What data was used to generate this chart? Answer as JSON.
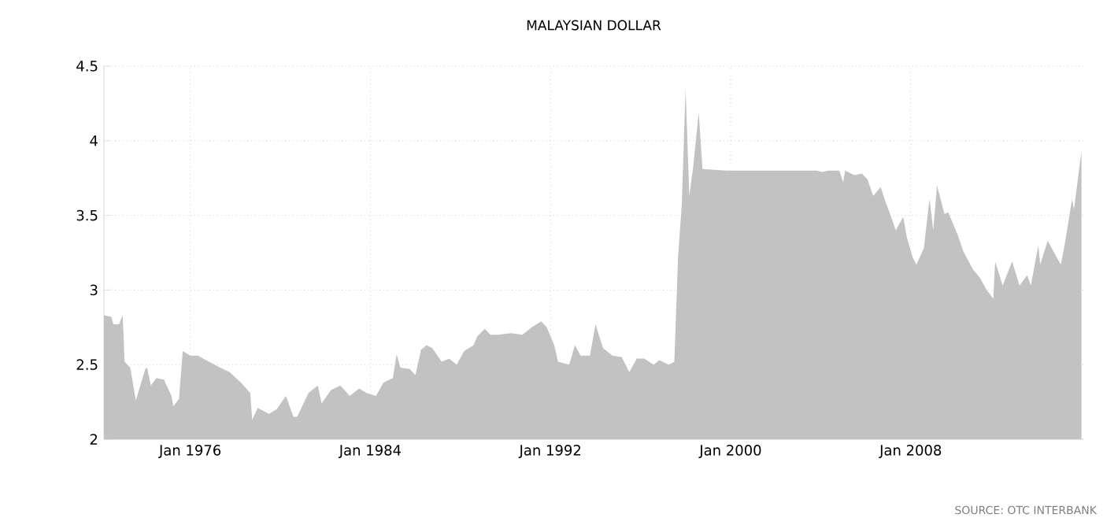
{
  "chart_data": {
    "type": "area",
    "title": "MALAYSIAN DOLLAR",
    "annotations": [
      "SOURCE: OTC INTERBANK"
    ],
    "xlim": [
      "1972-03",
      "2015-09"
    ],
    "ylim": [
      2,
      4.5
    ],
    "xticks": [
      {
        "value": "1976-01",
        "label": "Jan 1976"
      },
      {
        "value": "1984-01",
        "label": "Jan 1984"
      },
      {
        "value": "1992-01",
        "label": "Jan 1992"
      },
      {
        "value": "2000-01",
        "label": "Jan 2000"
      },
      {
        "value": "2008-01",
        "label": "Jan 2008"
      }
    ],
    "yticks": [
      2,
      2.5,
      3,
      3.5,
      4,
      4.5
    ],
    "grid": true,
    "series": [
      {
        "color": "#c2c2c2",
        "x": [
          "1972-03",
          "1972-07",
          "1972-08",
          "1972-11",
          "1973-01",
          "1973-02",
          "1973-05",
          "1973-08",
          "1974-01",
          "1974-02",
          "1974-04",
          "1974-07",
          "1974-11",
          "1975-03",
          "1975-04",
          "1975-07",
          "1975-09",
          "1976-01",
          "1976-05",
          "1976-11",
          "1977-05",
          "1977-10",
          "1978-04",
          "1978-09",
          "1978-10",
          "1979-01",
          "1979-07",
          "1979-11",
          "1980-04",
          "1980-08",
          "1980-10",
          "1981-04",
          "1981-09",
          "1981-11",
          "1982-04",
          "1982-09",
          "1983-02",
          "1983-07",
          "1983-11",
          "1984-04",
          "1984-08",
          "1985-01",
          "1985-03",
          "1985-05",
          "1985-10",
          "1986-01",
          "1986-04",
          "1986-07",
          "1986-10",
          "1987-03",
          "1987-07",
          "1987-11",
          "1988-03",
          "1988-08",
          "1988-10",
          "1989-02",
          "1989-05",
          "1989-09",
          "1990-04",
          "1990-10",
          "1991-03",
          "1991-08",
          "1991-11",
          "1992-03",
          "1992-05",
          "1992-11",
          "1993-02",
          "1993-05",
          "1993-10",
          "1994-01",
          "1994-05",
          "1994-10",
          "1995-03",
          "1995-07",
          "1995-11",
          "1996-03",
          "1996-08",
          "1996-11",
          "1997-04",
          "1997-07",
          "1997-09",
          "1997-11",
          "1998-01",
          "1998-03",
          "1998-05",
          "1998-08",
          "1998-10",
          "1999-11",
          "2003-11",
          "2004-02",
          "2004-05",
          "2004-11",
          "2005-01",
          "2005-02",
          "2005-07",
          "2005-11",
          "2006-02",
          "2006-05",
          "2006-09",
          "2006-11",
          "2007-02",
          "2007-05",
          "2007-09",
          "2007-11",
          "2008-02",
          "2008-04",
          "2008-08",
          "2008-11",
          "2009-01",
          "2009-03",
          "2009-07",
          "2009-09",
          "2010-02",
          "2010-05",
          "2010-10",
          "2011-02",
          "2011-05",
          "2011-09",
          "2011-10",
          "2012-02",
          "2012-07",
          "2012-11",
          "2013-03",
          "2013-05",
          "2013-09",
          "2013-10",
          "2014-02",
          "2014-05",
          "2014-09",
          "2014-11",
          "2015-03",
          "2015-04",
          "2015-08"
        ],
        "values": [
          2.83,
          2.82,
          2.77,
          2.77,
          2.83,
          2.52,
          2.48,
          2.26,
          2.47,
          2.48,
          2.36,
          2.41,
          2.4,
          2.29,
          2.22,
          2.27,
          2.59,
          2.56,
          2.56,
          2.52,
          2.48,
          2.45,
          2.38,
          2.31,
          2.13,
          2.21,
          2.17,
          2.2,
          2.29,
          2.15,
          2.15,
          2.31,
          2.36,
          2.24,
          2.33,
          2.36,
          2.29,
          2.34,
          2.31,
          2.29,
          2.38,
          2.41,
          2.57,
          2.48,
          2.47,
          2.43,
          2.6,
          2.63,
          2.61,
          2.52,
          2.54,
          2.5,
          2.59,
          2.63,
          2.69,
          2.74,
          2.7,
          2.7,
          2.71,
          2.7,
          2.75,
          2.79,
          2.75,
          2.63,
          2.52,
          2.5,
          2.63,
          2.56,
          2.56,
          2.77,
          2.61,
          2.56,
          2.55,
          2.45,
          2.54,
          2.54,
          2.5,
          2.53,
          2.5,
          2.52,
          3.22,
          3.58,
          4.35,
          3.63,
          3.82,
          4.19,
          3.81,
          3.8,
          3.8,
          3.79,
          3.8,
          3.8,
          3.72,
          3.8,
          3.77,
          3.78,
          3.74,
          3.63,
          3.69,
          3.61,
          3.51,
          3.4,
          3.49,
          3.35,
          3.22,
          3.17,
          3.28,
          3.61,
          3.4,
          3.7,
          3.51,
          3.52,
          3.37,
          3.26,
          3.14,
          3.08,
          3.01,
          2.94,
          3.19,
          3.03,
          3.19,
          3.03,
          3.1,
          3.03,
          3.3,
          3.17,
          3.33,
          3.26,
          3.17,
          3.3,
          3.61,
          3.54,
          3.93
        ]
      }
    ]
  }
}
